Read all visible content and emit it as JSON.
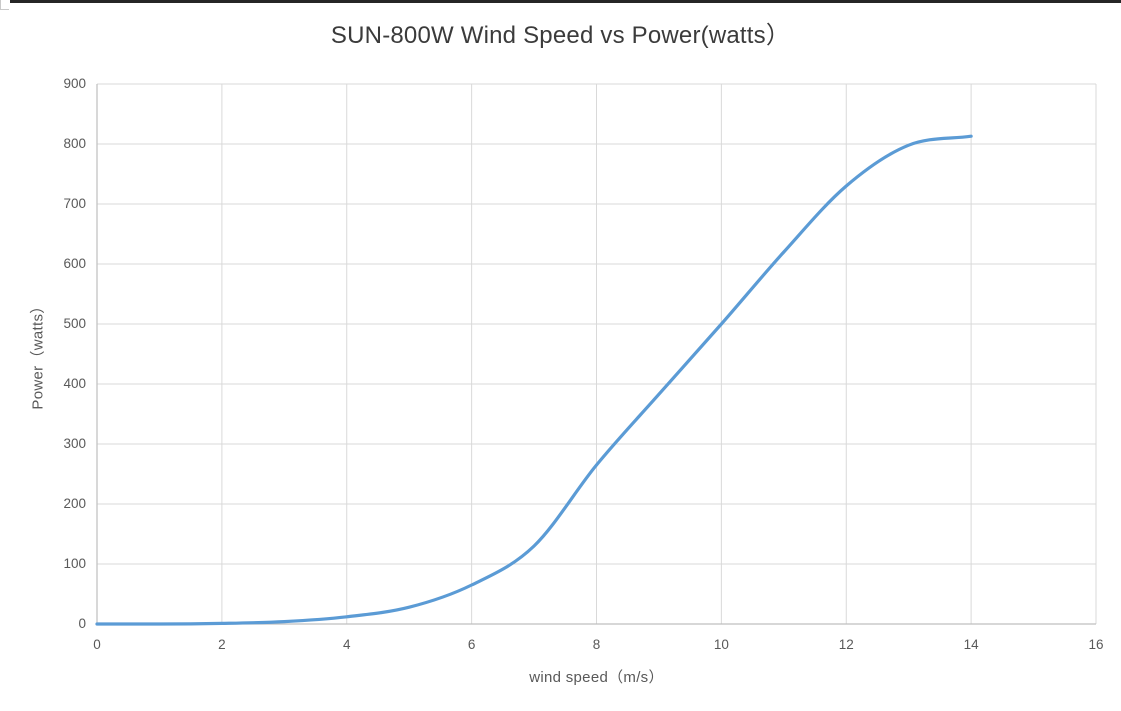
{
  "chart_data": {
    "type": "line",
    "title": "SUN-800W Wind Speed vs Power(watts）",
    "xlabel": "wind speed（m/s）",
    "ylabel": "Power（watts）",
    "x": [
      0,
      1,
      2,
      3,
      4,
      5,
      6,
      7,
      8,
      9,
      10,
      11,
      12,
      13,
      14
    ],
    "series": [
      {
        "name": "Power",
        "values": [
          0,
          0,
          1,
          4,
          12,
          28,
          65,
          130,
          265,
          383,
          500,
          620,
          730,
          798,
          813
        ]
      }
    ],
    "xlim": [
      0,
      16
    ],
    "ylim": [
      0,
      900
    ],
    "x_ticks": [
      0,
      2,
      4,
      6,
      8,
      10,
      12,
      14,
      16
    ],
    "y_ticks": [
      0,
      100,
      200,
      300,
      400,
      500,
      600,
      700,
      800,
      900
    ],
    "grid": true,
    "legend": false,
    "colors": {
      "line": "#5B9BD5",
      "gridline": "#D9D9D9",
      "axis": "#BFBFBF",
      "tick_text": "#595959",
      "title_text": "#3b3b3b"
    }
  }
}
